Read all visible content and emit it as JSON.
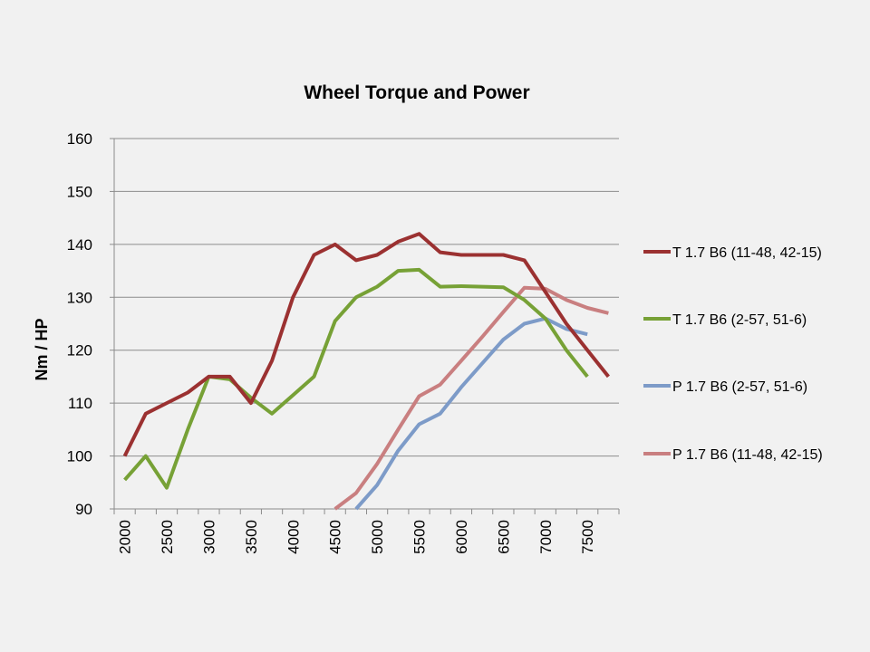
{
  "chart_data": {
    "type": "line",
    "title": "Wheel Torque and Power",
    "ylabel": "Nm / HP",
    "xlabel": "",
    "ylim": [
      90,
      160
    ],
    "yticks": [
      90,
      100,
      110,
      120,
      130,
      140,
      150,
      160
    ],
    "grid": true,
    "legend_position": "right",
    "x": [
      2000,
      2250,
      2500,
      2750,
      3000,
      3250,
      3500,
      3750,
      4000,
      4250,
      4500,
      4750,
      5000,
      5250,
      5500,
      5750,
      6000,
      6250,
      6500,
      6750,
      7000,
      7250,
      7500,
      7750
    ],
    "x_tick_labels": [
      "2000",
      "2500",
      "3000",
      "3500",
      "4000",
      "4500",
      "5000",
      "5500",
      "6000",
      "6500",
      "7000",
      "7500"
    ],
    "series": [
      {
        "name": "T 1.7 B6 (11-48, 42-15)",
        "color": "#9b3131",
        "values": [
          100,
          108,
          110,
          112,
          115,
          115,
          110,
          118,
          130,
          138,
          140,
          137,
          138,
          140.5,
          142,
          138.5,
          138,
          138,
          138,
          137,
          131,
          125,
          120,
          115
        ]
      },
      {
        "name": "T 1.7 B6 (2-57, 51-6)",
        "color": "#77a136",
        "values": [
          95.5,
          100,
          94,
          105,
          115,
          114.5,
          111,
          108,
          111.5,
          115,
          125.5,
          130,
          132,
          135,
          135.2,
          132,
          132.1,
          132,
          131.9,
          129.5,
          126,
          120,
          115,
          null
        ]
      },
      {
        "name": "P 1.7 B6 (2-57, 51-6)",
        "color": "#7d9bc8",
        "values": [
          null,
          null,
          null,
          null,
          null,
          null,
          null,
          null,
          null,
          null,
          null,
          90,
          94.5,
          101,
          106,
          108,
          113,
          117.5,
          122,
          125,
          126,
          124,
          123,
          null
        ]
      },
      {
        "name": "P 1.7 B6 (11-48, 42-15)",
        "color": "#c97f80",
        "values": [
          null,
          null,
          null,
          null,
          null,
          null,
          null,
          null,
          null,
          null,
          90,
          93,
          98.5,
          105,
          111.3,
          113.5,
          118,
          122.5,
          127.2,
          131.8,
          131.6,
          129.5,
          128,
          127
        ]
      }
    ]
  }
}
